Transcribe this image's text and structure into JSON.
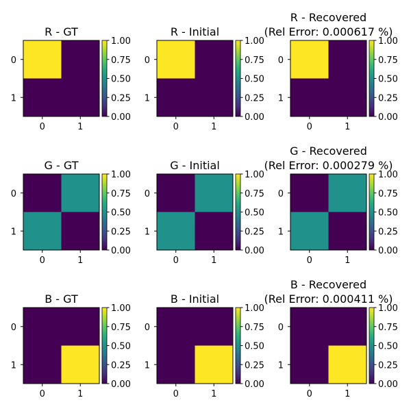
{
  "chart_data": {
    "type": "heatmap",
    "colormap": [
      "#440154",
      "#472d7b",
      "#3b528b",
      "#2c728e",
      "#21918c",
      "#28ae80",
      "#5ec962",
      "#addc30",
      "#fde725"
    ],
    "panels": [
      {
        "title": [
          "R - GT"
        ],
        "matrix": [
          [
            1,
            0
          ],
          [
            0,
            0
          ]
        ],
        "x_ticks": [
          "0",
          "1"
        ],
        "y_ticks": [
          "0",
          "1"
        ],
        "vlim": [
          0,
          1
        ]
      },
      {
        "title": [
          "R - Initial"
        ],
        "matrix": [
          [
            1,
            0
          ],
          [
            0,
            0
          ]
        ],
        "x_ticks": [
          "0",
          "1"
        ],
        "y_ticks": [
          "0",
          "1"
        ],
        "vlim": [
          0,
          1
        ]
      },
      {
        "title": [
          "R - Recovered",
          "(Rel Error: 0.000617 %)"
        ],
        "matrix": [
          [
            1,
            0
          ],
          [
            0,
            0
          ]
        ],
        "x_ticks": [
          "0",
          "1"
        ],
        "y_ticks": [
          "0",
          "1"
        ],
        "vlim": [
          0,
          1
        ]
      },
      {
        "title": [
          "G - GT"
        ],
        "matrix": [
          [
            0,
            0.5
          ],
          [
            0.5,
            0
          ]
        ],
        "x_ticks": [
          "0",
          "1"
        ],
        "y_ticks": [
          "0",
          "1"
        ],
        "vlim": [
          0,
          1
        ]
      },
      {
        "title": [
          "G - Initial"
        ],
        "matrix": [
          [
            0,
            0.5
          ],
          [
            0.5,
            0
          ]
        ],
        "x_ticks": [
          "0",
          "1"
        ],
        "y_ticks": [
          "0",
          "1"
        ],
        "vlim": [
          0,
          1
        ]
      },
      {
        "title": [
          "G - Recovered",
          "(Rel Error: 0.000279 %)"
        ],
        "matrix": [
          [
            0,
            0.5
          ],
          [
            0.5,
            0
          ]
        ],
        "x_ticks": [
          "0",
          "1"
        ],
        "y_ticks": [
          "0",
          "1"
        ],
        "vlim": [
          0,
          1
        ]
      },
      {
        "title": [
          "B - GT"
        ],
        "matrix": [
          [
            0,
            0
          ],
          [
            0,
            1
          ]
        ],
        "x_ticks": [
          "0",
          "1"
        ],
        "y_ticks": [
          "0",
          "1"
        ],
        "vlim": [
          0,
          1
        ]
      },
      {
        "title": [
          "B - Initial"
        ],
        "matrix": [
          [
            0,
            0
          ],
          [
            0,
            1
          ]
        ],
        "x_ticks": [
          "0",
          "1"
        ],
        "y_ticks": [
          "0",
          "1"
        ],
        "vlim": [
          0,
          1
        ]
      },
      {
        "title": [
          "B - Recovered",
          "(Rel Error: 0.000411 %)"
        ],
        "matrix": [
          [
            0,
            0
          ],
          [
            0,
            1
          ]
        ],
        "x_ticks": [
          "0",
          "1"
        ],
        "y_ticks": [
          "0",
          "1"
        ],
        "vlim": [
          0,
          1
        ]
      }
    ],
    "colorbar_ticks": [
      "0.00",
      "0.25",
      "0.50",
      "0.75",
      "1.00"
    ],
    "colorbar_tick_values": [
      0,
      0.25,
      0.5,
      0.75,
      1
    ]
  }
}
